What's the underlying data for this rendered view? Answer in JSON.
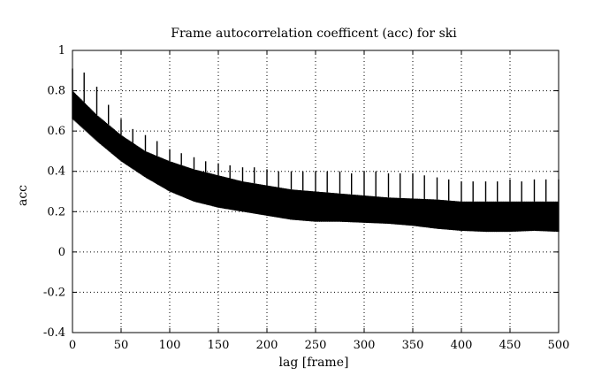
{
  "chart_data": {
    "type": "line",
    "title": "Frame autocorrelation coefficent (acc) for ski",
    "xlabel": "lag [frame]",
    "ylabel": "acc",
    "xlim": [
      0,
      500
    ],
    "ylim": [
      -0.4,
      1
    ],
    "x_ticks": [
      "0",
      "50",
      "100",
      "150",
      "200",
      "250",
      "300",
      "350",
      "400",
      "450",
      "500"
    ],
    "y_ticks": [
      "-0.4",
      "-0.2",
      "0",
      "0.2",
      "0.4",
      "0.6",
      "0.8",
      "1"
    ],
    "grid": true,
    "series": [
      {
        "lower_envelope": {
          "x": [
            0,
            25,
            50,
            75,
            100,
            125,
            150,
            175,
            200,
            225,
            250,
            275,
            300,
            325,
            350,
            375,
            400,
            425,
            450,
            475,
            500
          ],
          "y": [
            0.66,
            0.55,
            0.45,
            0.37,
            0.3,
            0.25,
            0.22,
            0.2,
            0.18,
            0.16,
            0.15,
            0.15,
            0.145,
            0.14,
            0.13,
            0.115,
            0.105,
            0.1,
            0.1,
            0.105,
            0.1
          ]
        },
        "upper_envelope": {
          "x": [
            0,
            25,
            50,
            75,
            100,
            125,
            150,
            175,
            200,
            225,
            250,
            275,
            300,
            325,
            350,
            375,
            400,
            425,
            450,
            475,
            500
          ],
          "y": [
            0.8,
            0.68,
            0.58,
            0.5,
            0.45,
            0.41,
            0.38,
            0.35,
            0.33,
            0.31,
            0.3,
            0.29,
            0.28,
            0.27,
            0.265,
            0.26,
            0.25,
            0.25,
            0.25,
            0.25,
            0.25
          ]
        },
        "peaks": {
          "x": [
            0,
            12,
            25,
            37,
            50,
            62,
            75,
            87,
            100,
            112,
            125,
            137,
            150,
            162,
            175,
            187,
            200,
            212,
            225,
            237,
            250,
            262,
            275,
            287,
            300,
            312,
            325,
            337,
            350,
            362,
            375,
            387,
            400,
            412,
            425,
            437,
            450,
            462,
            475,
            487,
            500
          ],
          "y": [
            0.91,
            0.89,
            0.82,
            0.73,
            0.66,
            0.61,
            0.58,
            0.55,
            0.51,
            0.49,
            0.47,
            0.45,
            0.44,
            0.43,
            0.42,
            0.42,
            0.41,
            0.4,
            0.4,
            0.4,
            0.4,
            0.4,
            0.4,
            0.39,
            0.4,
            0.4,
            0.39,
            0.39,
            0.39,
            0.38,
            0.37,
            0.36,
            0.35,
            0.35,
            0.35,
            0.35,
            0.36,
            0.35,
            0.36,
            0.36,
            0.36
          ]
        }
      }
    ]
  }
}
